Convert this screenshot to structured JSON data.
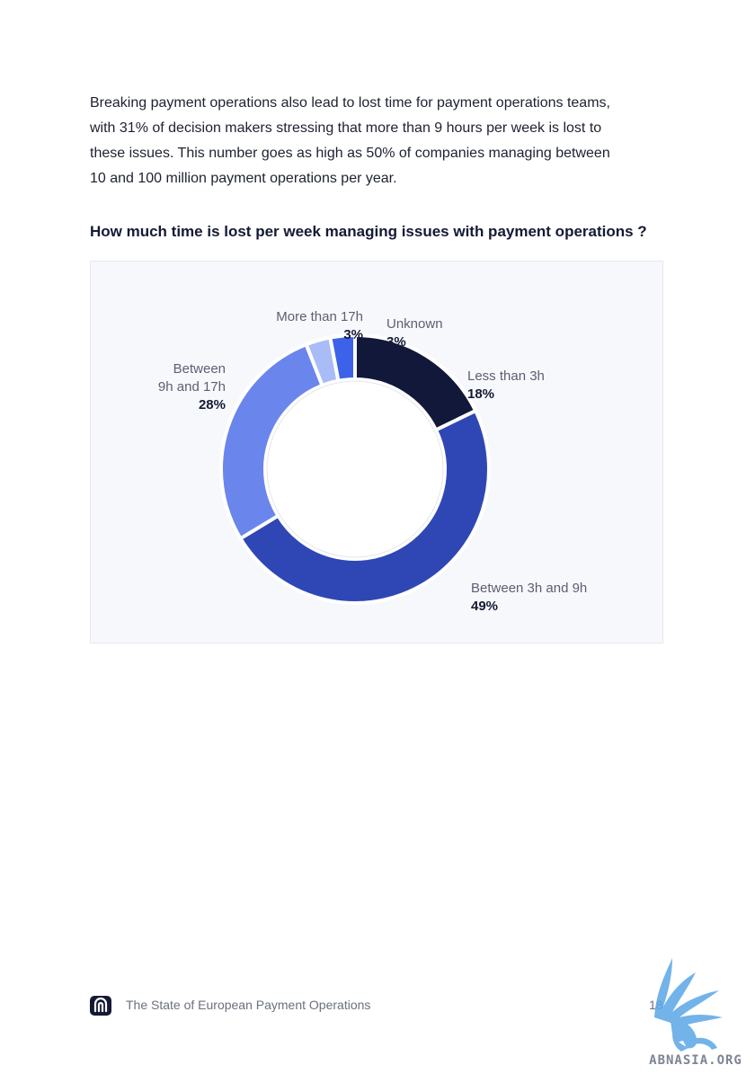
{
  "intro_text": "Breaking payment operations also lead to lost time for payment operations teams,\nwith 31% of decision makers stressing that more than 9 hours per week is lost to\nthese issues. This number goes as high as 50% of companies managing between\n10 and 100 million payment operations per year.",
  "chart_data": {
    "type": "pie",
    "title": "How much time is lost per week managing issues with payment operations ?",
    "donut": true,
    "slices": [
      {
        "label": "Less than 3h",
        "value": 18,
        "display": "18%",
        "color": "#12183a"
      },
      {
        "label": "Between 3h and 9h",
        "value": 49,
        "display": "49%",
        "color": "#2f47b5"
      },
      {
        "label": "Between\n9h and 17h",
        "value": 28,
        "display": "28%",
        "color": "#6a85ec"
      },
      {
        "label": "More than 17h",
        "value": 3,
        "display": "3%",
        "color": "#a9bcf7"
      },
      {
        "label": "Unknown",
        "value": 3,
        "display": "3%",
        "color": "#3d62ea"
      }
    ]
  },
  "footer": {
    "title": "The State of European Payment Operations",
    "page_number": "18",
    "logo_icon": "brand-logo-icon"
  },
  "watermark": {
    "text": "ABNASIA.ORG",
    "icon": "winged-lion-icon"
  }
}
